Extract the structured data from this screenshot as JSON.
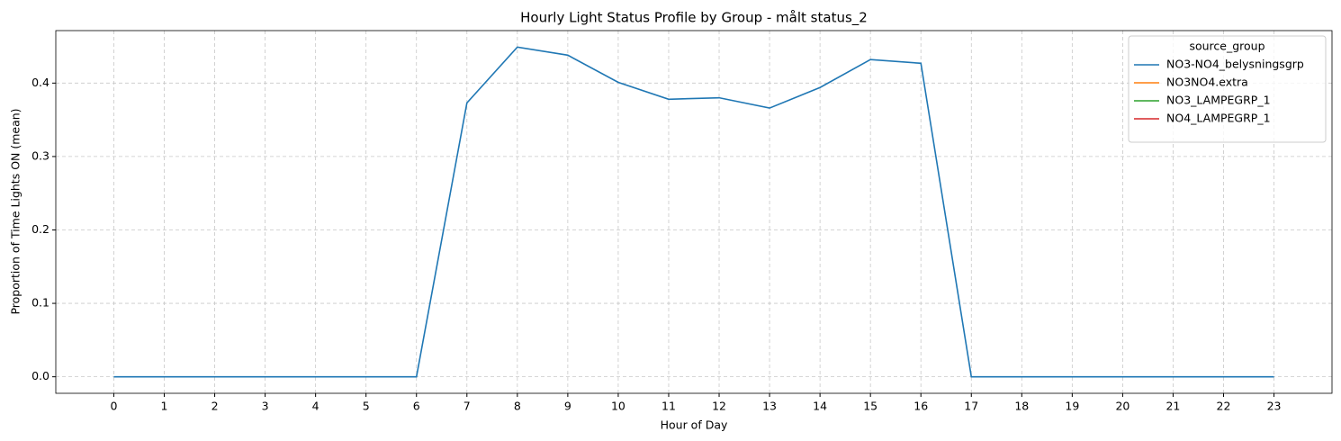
{
  "chart_data": {
    "type": "line",
    "title": "Hourly Light Status Profile by Group - målt status_2",
    "x_label": "Hour of Day",
    "y_label": "Proportion of Time Lights ON (mean)",
    "x": [
      0,
      1,
      2,
      3,
      4,
      5,
      6,
      7,
      8,
      9,
      10,
      11,
      12,
      13,
      14,
      15,
      16,
      17,
      18,
      19,
      20,
      21,
      22,
      23
    ],
    "series": [
      {
        "name": "NO3-NO4_belysningsgrp",
        "color": "#1f77b4",
        "values": [
          0,
          0,
          0,
          0,
          0,
          0,
          0,
          0.373,
          0.449,
          0.438,
          0.401,
          0.378,
          0.38,
          0.366,
          0.394,
          0.432,
          0.427,
          0,
          0,
          0,
          0,
          0,
          0,
          0
        ]
      },
      {
        "name": "NO3NO4.extra",
        "color": "#ff7f0e",
        "values": [
          null,
          null,
          null,
          null,
          null,
          null,
          null,
          null,
          null,
          null,
          null,
          null,
          null,
          null,
          null,
          null,
          null,
          null,
          null,
          null,
          null,
          null,
          null,
          null
        ]
      },
      {
        "name": "NO3_LAMPEGRP_1",
        "color": "#2ca02c",
        "values": [
          null,
          null,
          null,
          null,
          null,
          null,
          null,
          null,
          null,
          null,
          null,
          null,
          null,
          null,
          null,
          null,
          null,
          null,
          null,
          null,
          null,
          null,
          null,
          null
        ]
      },
      {
        "name": "NO4_LAMPEGRP_1",
        "color": "#d62728",
        "values": [
          null,
          null,
          null,
          null,
          null,
          null,
          null,
          null,
          null,
          null,
          null,
          null,
          null,
          null,
          null,
          null,
          null,
          null,
          null,
          null,
          null,
          null,
          null,
          null
        ]
      }
    ],
    "legend_title": "source_group",
    "legend": "upper right",
    "xlim": [
      -1.15,
      24.15
    ],
    "xticks": [
      0,
      1,
      2,
      3,
      4,
      5,
      6,
      7,
      8,
      9,
      10,
      11,
      12,
      13,
      14,
      15,
      16,
      17,
      18,
      19,
      20,
      21,
      22,
      23
    ],
    "ylim": [
      -0.0225,
      0.4715
    ],
    "yticks": [
      {
        "value": 0,
        "label": "0.0"
      },
      {
        "value": 0.1,
        "label": "0.1"
      },
      {
        "value": 0.2,
        "label": "0.2"
      },
      {
        "value": 0.3,
        "label": "0.3"
      },
      {
        "value": 0.4,
        "label": "0.4"
      }
    ],
    "grid": true
  }
}
